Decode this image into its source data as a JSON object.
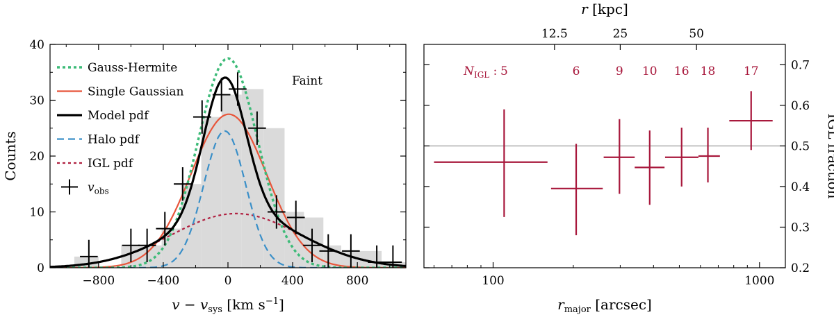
{
  "chart_data": [
    {
      "type": "histogram",
      "title": "",
      "annotation": "Faint",
      "xlabel": "v − v",
      "xlabel_sub": "sys",
      "xlabel_unit": " [km s",
      "xlabel_unit_sup": "−1",
      "xlabel_close": "]",
      "ylabel": "Counts",
      "xlim": [
        -1100,
        1100
      ],
      "ylim": [
        0,
        40
      ],
      "xticks": [
        -800,
        -400,
        0,
        400,
        800
      ],
      "yticks": [
        0,
        10,
        20,
        30,
        40
      ],
      "xtick_labels": [
        "−800",
        "−400",
        "0",
        "400",
        "800"
      ],
      "ytick_labels": [
        "0",
        "10",
        "20",
        "30",
        "40"
      ],
      "histogram": {
        "edges": [
          -1100,
          -950,
          -800,
          -660,
          -530,
          -410,
          -290,
          -165,
          -40,
          85,
          220,
          350,
          470,
          590,
          700,
          810,
          950,
          1100
        ],
        "counts": [
          0,
          2,
          0,
          4,
          4,
          7,
          15,
          27,
          31,
          32,
          25,
          10,
          9,
          4,
          3,
          3,
          1
        ]
      },
      "observed": {
        "name": "v",
        "name_sub": "obs",
        "points": [
          {
            "x": -860,
            "y": 2,
            "xerr": 55
          },
          {
            "x": -600,
            "y": 4,
            "xerr": 55
          },
          {
            "x": -500,
            "y": 4,
            "xerr": 55
          },
          {
            "x": -390,
            "y": 7,
            "xerr": 55
          },
          {
            "x": -280,
            "y": 15,
            "xerr": 55
          },
          {
            "x": -160,
            "y": 27,
            "xerr": 55
          },
          {
            "x": -40,
            "y": 31,
            "xerr": 55
          },
          {
            "x": 60,
            "y": 32,
            "xerr": 55
          },
          {
            "x": 180,
            "y": 25,
            "xerr": 55
          },
          {
            "x": 300,
            "y": 10,
            "xerr": 55
          },
          {
            "x": 420,
            "y": 9,
            "xerr": 55
          },
          {
            "x": 520,
            "y": 4,
            "xerr": 55
          },
          {
            "x": 620,
            "y": 3,
            "xerr": 55
          },
          {
            "x": 760,
            "y": 3,
            "xerr": 55
          },
          {
            "x": 920,
            "y": 1,
            "xerr": 55
          },
          {
            "x": 1020,
            "y": 1,
            "xerr": 55
          }
        ],
        "yerr": 3
      },
      "series": [
        {
          "name": "Gauss-Hermite",
          "style": "dotted",
          "color": "#3dbb78",
          "model": {
            "type": "gauss",
            "amp": 37.5,
            "mu": 0,
            "sigma": 185
          }
        },
        {
          "name": "Single Gaussian",
          "style": "solid",
          "color": "#e8553a",
          "model": {
            "type": "gauss",
            "amp": 27.5,
            "mu": 5,
            "sigma": 235
          }
        },
        {
          "name": "Model pdf",
          "style": "solid-bold",
          "color": "#000000",
          "model": {
            "type": "sum"
          }
        },
        {
          "name": "Halo pdf",
          "style": "dashed",
          "color": "#3a8fc8",
          "model": {
            "type": "gauss",
            "amp": 24.5,
            "mu": -20,
            "sigma": 130
          }
        },
        {
          "name": "IGL pdf",
          "style": "dotted",
          "color": "#b02040",
          "model": {
            "type": "gauss",
            "amp": 9.7,
            "mu": 50,
            "sigma": 400
          }
        }
      ]
    },
    {
      "type": "errorbar",
      "xscale": "log",
      "xlabel": "r",
      "xlabel_sub": "major",
      "xlabel_unit": " [arcsec]",
      "ylabel": "IGL fraction",
      "top_xlabel": "r",
      "top_xlabel_unit": " [kpc]",
      "xlim": [
        55,
        1250
      ],
      "ylim": [
        0.2,
        0.75
      ],
      "xticks": [
        100,
        1000
      ],
      "xtick_labels": [
        "100",
        "1000"
      ],
      "yticks": [
        0.2,
        0.3,
        0.4,
        0.5,
        0.6,
        0.7
      ],
      "ytick_labels": [
        "0.2",
        "0.3",
        "0.4",
        "0.5",
        "0.6",
        "0.7"
      ],
      "top_ticks": [
        {
          "arcsec": 170,
          "label": "12.5"
        },
        {
          "arcsec": 300,
          "label": "25"
        },
        {
          "arcsec": 580,
          "label": "50"
        }
      ],
      "reference_line": 0.5,
      "color": "#a8183c",
      "n_label_prefix": "N",
      "n_label_sub": "IGL",
      "n_label_sep": " : ",
      "points": [
        {
          "x": 110,
          "xlo": 60,
          "xhi": 160,
          "y": 0.46,
          "ylo": 0.325,
          "yhi": 0.59,
          "n": "5"
        },
        {
          "x": 205,
          "xlo": 165,
          "xhi": 258,
          "y": 0.395,
          "ylo": 0.28,
          "yhi": 0.505,
          "n": "6"
        },
        {
          "x": 298,
          "xlo": 260,
          "xhi": 340,
          "y": 0.472,
          "ylo": 0.382,
          "yhi": 0.566,
          "n": "9"
        },
        {
          "x": 387,
          "xlo": 340,
          "xhi": 440,
          "y": 0.447,
          "ylo": 0.355,
          "yhi": 0.538,
          "n": "10"
        },
        {
          "x": 510,
          "xlo": 442,
          "xhi": 590,
          "y": 0.472,
          "ylo": 0.4,
          "yhi": 0.545,
          "n": "16"
        },
        {
          "x": 640,
          "xlo": 590,
          "xhi": 710,
          "y": 0.475,
          "ylo": 0.41,
          "yhi": 0.545,
          "n": "18"
        },
        {
          "x": 930,
          "xlo": 770,
          "xhi": 1120,
          "y": 0.562,
          "ylo": 0.49,
          "yhi": 0.635,
          "n": "17"
        }
      ]
    }
  ]
}
